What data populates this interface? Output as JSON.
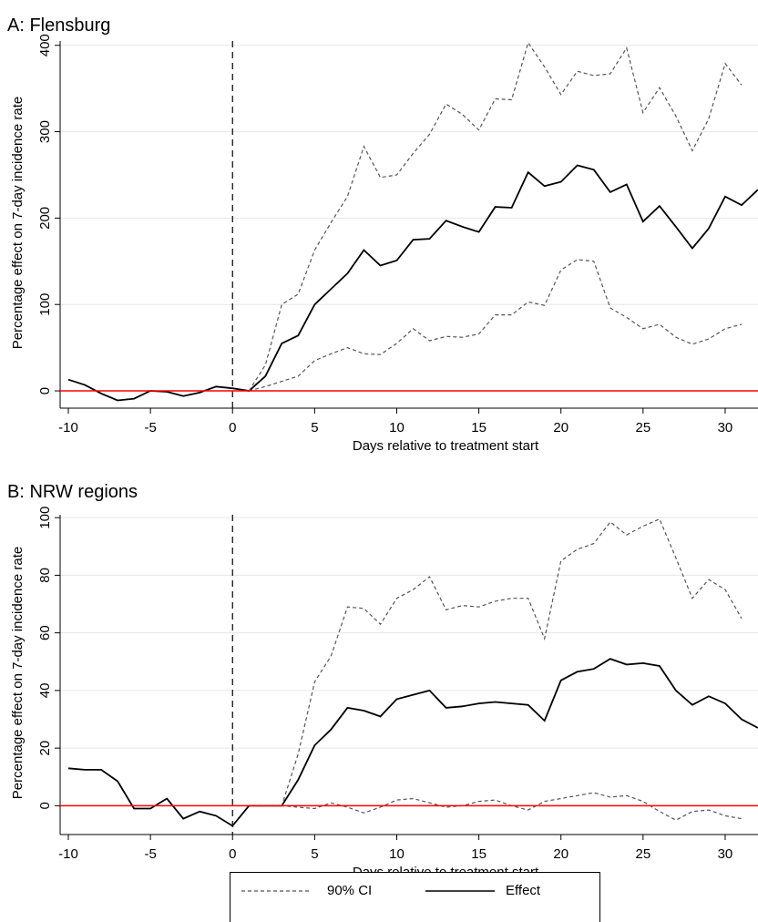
{
  "legend": {
    "ci_label": "90% CI",
    "effect_label": "Effect"
  },
  "colors": {
    "effect": "#000000",
    "ci": "#555555",
    "zero_line": "#ff0000",
    "grid": "#e6e6e6",
    "treatment_line": "#000000"
  },
  "chart_data": [
    {
      "type": "line",
      "title": "A: Flensburg",
      "xlabel": "Days relative to treatment start",
      "ylabel": "Percentage effect on 7-day incidence rate",
      "xlim": [
        -10.5,
        32
      ],
      "ylim": [
        -20,
        405
      ],
      "xticks": [
        -10,
        -5,
        0,
        5,
        10,
        15,
        20,
        25,
        30
      ],
      "yticks": [
        0,
        100,
        200,
        300,
        400
      ],
      "grid": true,
      "treatment_start_x": 0,
      "reference_y": 0,
      "series": [
        {
          "name": "Effect",
          "style": "solid",
          "x": [
            -10,
            -9,
            -8,
            -7,
            -6,
            -5,
            -4,
            -3,
            -2,
            -1,
            0,
            1,
            2,
            3,
            4,
            5,
            6,
            7,
            8,
            9,
            10,
            11,
            12,
            13,
            14,
            15,
            16,
            17,
            18,
            19,
            20,
            21,
            22,
            23,
            24,
            25,
            26,
            27,
            28,
            29,
            30,
            31,
            32
          ],
          "values": [
            13,
            7,
            -3,
            -11,
            -9,
            0,
            -1,
            -6,
            -2,
            5,
            3,
            0,
            17,
            55,
            64,
            100,
            118,
            136,
            163,
            145,
            151,
            175,
            176,
            197,
            190,
            184,
            213,
            212,
            253,
            237,
            242,
            261,
            256,
            230,
            239,
            196,
            214,
            190,
            165,
            188,
            225,
            215,
            233
          ]
        },
        {
          "name": "90% CI",
          "style": "dashed",
          "x": [
            1,
            2,
            3,
            4,
            5,
            6,
            7,
            8,
            9,
            10,
            11,
            12,
            13,
            14,
            15,
            16,
            17,
            18,
            19,
            20,
            21,
            22,
            23,
            24,
            25,
            26,
            27,
            28,
            29,
            30,
            31
          ],
          "values": [
            0,
            30,
            100,
            112,
            163,
            195,
            225,
            283,
            247,
            250,
            275,
            297,
            332,
            320,
            302,
            338,
            337,
            403,
            375,
            343,
            370,
            365,
            367,
            397,
            322,
            351,
            318,
            278,
            315,
            379,
            354
          ]
        },
        {
          "name": "90% CI",
          "style": "dashed",
          "x": [
            1,
            2,
            3,
            4,
            5,
            6,
            7,
            8,
            9,
            10,
            11,
            12,
            13,
            14,
            15,
            16,
            17,
            18,
            19,
            20,
            21,
            22,
            23,
            24,
            25,
            26,
            27,
            28,
            29,
            30,
            31
          ],
          "values": [
            0,
            5,
            11,
            17,
            35,
            43,
            50,
            43,
            42,
            55,
            72,
            58,
            63,
            62,
            66,
            88,
            88,
            103,
            99,
            140,
            152,
            150,
            96,
            85,
            72,
            77,
            62,
            54,
            60,
            72,
            77
          ]
        }
      ]
    },
    {
      "type": "line",
      "title": "B: NRW regions",
      "xlabel": "Days relative to treatment start",
      "ylabel": "Percentage effect on 7-day incidence rate",
      "xlim": [
        -10.5,
        32
      ],
      "ylim": [
        -10,
        101
      ],
      "xticks": [
        -10,
        -5,
        0,
        5,
        10,
        15,
        20,
        25,
        30
      ],
      "yticks": [
        0,
        20,
        40,
        60,
        80,
        100
      ],
      "grid": true,
      "treatment_start_x": 0,
      "reference_y": 0,
      "series": [
        {
          "name": "Effect",
          "style": "solid",
          "x": [
            -10,
            -9,
            -8,
            -7,
            -6,
            -5,
            -4,
            -3,
            -2,
            -1,
            0,
            1,
            2,
            3,
            4,
            5,
            6,
            7,
            8,
            9,
            10,
            11,
            12,
            13,
            14,
            15,
            16,
            17,
            18,
            19,
            20,
            21,
            22,
            23,
            24,
            25,
            26,
            27,
            28,
            29,
            30,
            31,
            32
          ],
          "values": [
            13,
            12.5,
            12.5,
            8.5,
            -1,
            -1,
            2.5,
            -4.5,
            -2,
            -3.5,
            -7,
            0,
            0,
            0,
            9,
            21,
            26.5,
            34,
            33,
            31,
            37,
            38.5,
            40,
            34,
            34.5,
            35.5,
            36,
            35.5,
            35,
            29.5,
            43.5,
            46.5,
            47.5,
            51,
            49,
            49.5,
            48.5,
            40,
            35,
            38,
            35.5,
            30,
            27
          ]
        },
        {
          "name": "90% CI",
          "style": "dashed",
          "x": [
            1,
            2,
            3,
            4,
            5,
            6,
            7,
            8,
            9,
            10,
            11,
            12,
            13,
            14,
            15,
            16,
            17,
            18,
            19,
            20,
            21,
            22,
            23,
            24,
            25,
            26,
            27,
            28,
            29,
            30,
            31
          ],
          "values": [
            0,
            0,
            0,
            18,
            43,
            52,
            69,
            68.5,
            63,
            72,
            75,
            79.5,
            68,
            69.5,
            69,
            71,
            72,
            72,
            58,
            85,
            89,
            91,
            98.5,
            94,
            97,
            99.5,
            86,
            72,
            78.5,
            75,
            65
          ]
        },
        {
          "name": "90% CI",
          "style": "dashed",
          "x": [
            1,
            2,
            3,
            4,
            5,
            6,
            7,
            8,
            9,
            10,
            11,
            12,
            13,
            14,
            15,
            16,
            17,
            18,
            19,
            20,
            21,
            22,
            23,
            24,
            25,
            26,
            27,
            28,
            29,
            30,
            31
          ],
          "values": [
            0,
            0,
            0,
            -0.5,
            -1,
            1,
            -0.5,
            -2.5,
            -0.5,
            2,
            2.5,
            1,
            -0.5,
            0,
            1.5,
            2,
            0,
            -1.5,
            1.5,
            2.5,
            3.5,
            4.5,
            3,
            3.5,
            1.5,
            -2,
            -5,
            -2,
            -1.5,
            -3.5,
            -4.5
          ]
        }
      ]
    }
  ]
}
